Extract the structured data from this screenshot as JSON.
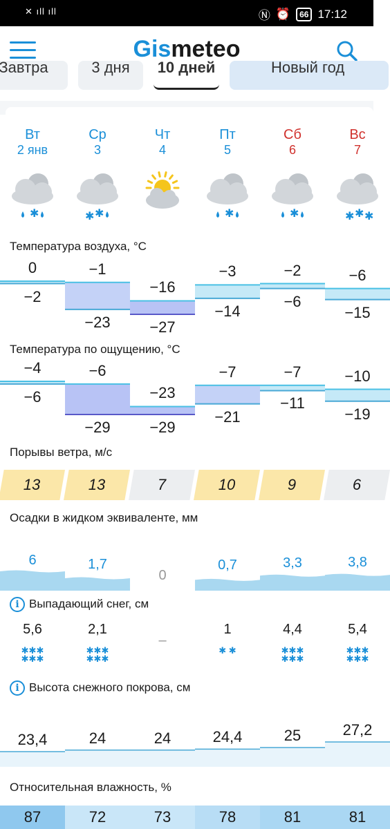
{
  "status": {
    "signal": "✕ ıll ıll",
    "time": "17:12",
    "battery": "66"
  },
  "app": {
    "logo_part1": "Gis",
    "logo_part2": "meteo"
  },
  "tabs": [
    "Завтра",
    "3 дня",
    "10 дней",
    "Новый год"
  ],
  "days": [
    {
      "name": "Вт",
      "date": "2 янв",
      "weekend": false,
      "icon": "cloud-snow-rain-icon"
    },
    {
      "name": "Ср",
      "date": "3",
      "weekend": false,
      "icon": "cloud-snow-rain-icon"
    },
    {
      "name": "Чт",
      "date": "4",
      "weekend": false,
      "icon": "sun-cloud-icon"
    },
    {
      "name": "Пт",
      "date": "5",
      "weekend": false,
      "icon": "cloud-snow-rain-icon"
    },
    {
      "name": "Сб",
      "date": "6",
      "weekend": true,
      "icon": "cloud-snow-rain-icon"
    },
    {
      "name": "Вс",
      "date": "7",
      "weekend": true,
      "icon": "cloud-snow-icon"
    }
  ],
  "air_temp": {
    "title": "Температура воздуха, °C",
    "max": [
      "0",
      "−1",
      "−16",
      "−3",
      "−2",
      "−6"
    ],
    "min": [
      "−2",
      "−23",
      "−27",
      "−14",
      "−6",
      "−15"
    ]
  },
  "feels_like": {
    "title": "Температура по ощущению, °C",
    "max": [
      "−4",
      "−6",
      "−23",
      "−7",
      "−7",
      "−10"
    ],
    "min": [
      "−6",
      "−29",
      "−29",
      "−21",
      "−11",
      "−19"
    ]
  },
  "wind": {
    "title": "Порывы ветра, м/с",
    "values": [
      "13",
      "13",
      "7",
      "10",
      "9",
      "6"
    ]
  },
  "precip": {
    "title": "Осадки в жидком эквиваленте, мм",
    "values": [
      "6",
      "1,7",
      "0",
      "0,7",
      "3,3",
      "3,8"
    ]
  },
  "snowfall": {
    "title": "Выпадающий снег, см",
    "values": [
      "5,6",
      "2,1",
      "–",
      "1",
      "4,4",
      "5,4"
    ]
  },
  "snow_depth": {
    "title": "Высота снежного покрова, см",
    "values": [
      "23,4",
      "24",
      "24",
      "24,4",
      "25",
      "27,2"
    ]
  },
  "humidity": {
    "title": "Относительная влажность, %",
    "values": [
      "87",
      "72",
      "73",
      "78",
      "81",
      "81"
    ]
  },
  "colors": {
    "accent": "#1a8fd8",
    "weekend": "#d0312d",
    "wind_high": "#fbe7a9",
    "wind_low": "#eceef0"
  }
}
